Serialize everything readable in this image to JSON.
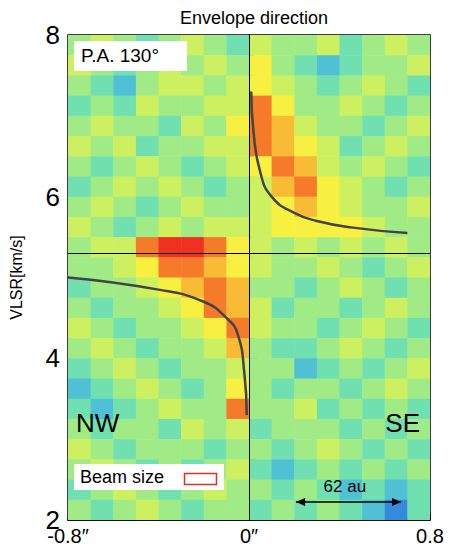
{
  "chart_data": {
    "type": "position_velocity",
    "title": "Envelope direction",
    "y_label": "VLSR[km/s]",
    "xlim": [
      -0.8,
      0.8
    ],
    "xticks": [
      {
        "value": -0.8,
        "label": "-0.8″"
      },
      {
        "value": 0,
        "label": "0″"
      },
      {
        "value": 0.8,
        "label": "0.8"
      }
    ],
    "ylim": [
      2,
      8
    ],
    "yticks": [
      2,
      4,
      6,
      8
    ],
    "grid": false,
    "annotations": {
      "pa": "P.A. 130°",
      "left_label": "NW",
      "right_label": "SE",
      "beam_label": "Beam size",
      "scale_label": "62 au"
    },
    "vlines": [
      0
    ],
    "hlines": [
      5.3
    ],
    "cells": {
      "x": [
        -0.75,
        -0.65,
        -0.55,
        -0.45,
        -0.35,
        -0.25,
        -0.15,
        -0.05,
        0.05,
        0.15,
        0.25,
        0.35,
        0.45,
        0.55,
        0.65,
        0.75
      ],
      "y": [
        7.875,
        7.625,
        7.375,
        7.125,
        6.875,
        6.625,
        6.375,
        6.125,
        5.875,
        5.625,
        5.375,
        5.125,
        4.875,
        4.625,
        4.375,
        4.125,
        3.875,
        3.625,
        3.375,
        3.125,
        2.875,
        2.625,
        2.375,
        2.125
      ],
      "z": [
        [
          4,
          5,
          4,
          3,
          4,
          5,
          4,
          3,
          5,
          4,
          4,
          5,
          3,
          4,
          5,
          4
        ],
        [
          5,
          4,
          3,
          4,
          5,
          4,
          5,
          4,
          6,
          4,
          3,
          2,
          3,
          4,
          4,
          5
        ],
        [
          4,
          3,
          2,
          4,
          5,
          5,
          4,
          5,
          6,
          5,
          4,
          3,
          4,
          5,
          4,
          3
        ],
        [
          3,
          4,
          3,
          5,
          4,
          4,
          5,
          5,
          8,
          6,
          4,
          4,
          5,
          4,
          3,
          4
        ],
        [
          4,
          5,
          4,
          4,
          3,
          5,
          4,
          6,
          8,
          7,
          5,
          4,
          4,
          3,
          4,
          5
        ],
        [
          5,
          4,
          5,
          3,
          4,
          4,
          5,
          5,
          8,
          7,
          6,
          5,
          3,
          4,
          5,
          4
        ],
        [
          4,
          3,
          4,
          5,
          4,
          3,
          4,
          5,
          6,
          8,
          7,
          5,
          4,
          5,
          4,
          3
        ],
        [
          3,
          4,
          5,
          4,
          5,
          4,
          3,
          4,
          5,
          7,
          8,
          6,
          5,
          4,
          3,
          4
        ],
        [
          4,
          5,
          4,
          3,
          4,
          5,
          4,
          4,
          5,
          6,
          7,
          6,
          5,
          4,
          4,
          5
        ],
        [
          5,
          4,
          3,
          4,
          5,
          4,
          5,
          5,
          5,
          6,
          6,
          6,
          6,
          5,
          4,
          4
        ],
        [
          4,
          5,
          5,
          8,
          9,
          9,
          8,
          6,
          5,
          4,
          5,
          4,
          5,
          4,
          5,
          4
        ],
        [
          4,
          4,
          5,
          6,
          8,
          8,
          7,
          6,
          5,
          4,
          4,
          5,
          4,
          3,
          4,
          5
        ],
        [
          3,
          4,
          4,
          5,
          6,
          7,
          8,
          7,
          4,
          4,
          3,
          4,
          5,
          4,
          3,
          4
        ],
        [
          4,
          3,
          4,
          4,
          5,
          6,
          8,
          7,
          5,
          3,
          4,
          4,
          3,
          4,
          5,
          4
        ],
        [
          5,
          4,
          3,
          4,
          4,
          5,
          6,
          8,
          5,
          4,
          4,
          3,
          4,
          5,
          4,
          3
        ],
        [
          4,
          5,
          4,
          3,
          4,
          4,
          5,
          7,
          4,
          3,
          3,
          4,
          5,
          4,
          3,
          4
        ],
        [
          3,
          4,
          5,
          4,
          3,
          4,
          4,
          5,
          4,
          4,
          2,
          3,
          4,
          3,
          4,
          5
        ],
        [
          2,
          3,
          4,
          5,
          4,
          3,
          4,
          6,
          4,
          3,
          4,
          4,
          3,
          4,
          5,
          4
        ],
        [
          3,
          2,
          3,
          4,
          5,
          4,
          4,
          8,
          4,
          4,
          5,
          3,
          4,
          3,
          4,
          3
        ],
        [
          4,
          3,
          4,
          4,
          3,
          5,
          4,
          5,
          3,
          4,
          4,
          4,
          3,
          4,
          3,
          4
        ],
        [
          5,
          4,
          3,
          4,
          4,
          4,
          3,
          4,
          4,
          3,
          4,
          5,
          4,
          3,
          4,
          3
        ],
        [
          4,
          5,
          4,
          3,
          4,
          3,
          4,
          5,
          3,
          2,
          3,
          4,
          3,
          4,
          3,
          4
        ],
        [
          3,
          4,
          5,
          4,
          3,
          4,
          5,
          4,
          4,
          3,
          4,
          3,
          2,
          3,
          2,
          3
        ],
        [
          4,
          3,
          4,
          5,
          4,
          3,
          4,
          4,
          3,
          4,
          3,
          4,
          3,
          2,
          1,
          3
        ]
      ],
      "zlim": [
        0,
        9
      ],
      "colors": [
        "#2040c0",
        "#40b0e8",
        "#70e0b0",
        "#b8f070",
        "#f8f040",
        "#f8a030",
        "#f03020"
      ]
    },
    "series": [
      {
        "type": "line",
        "color": "#444444",
        "x": [
          0.01,
          0.02,
          0.05,
          0.1,
          0.2,
          0.3,
          0.45,
          0.7
        ],
        "values": [
          7.3,
          6.8,
          6.3,
          6.0,
          5.8,
          5.7,
          5.62,
          5.55
        ]
      },
      {
        "type": "line",
        "color": "#444444",
        "x": [
          -0.01,
          -0.02,
          -0.05,
          -0.1,
          -0.2,
          -0.4,
          -0.8
        ],
        "values": [
          3.3,
          3.8,
          4.3,
          4.5,
          4.7,
          4.85,
          5.0
        ]
      }
    ]
  }
}
